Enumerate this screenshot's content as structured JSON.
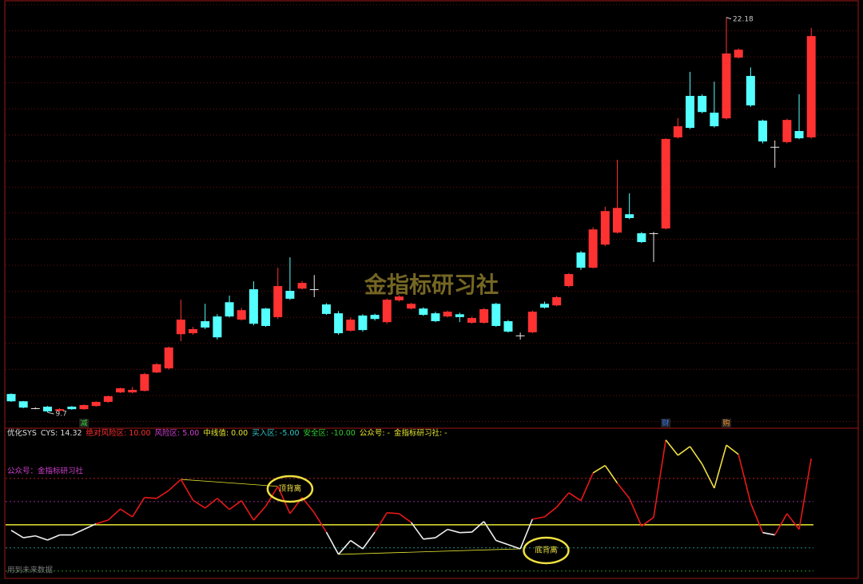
{
  "chart_data": [
    {
      "type": "candlestick",
      "up_color": "#ff3232",
      "down_color": "#54ffff",
      "ylim": [
        9.35,
        22.73
      ],
      "open": [
        10.28,
        10.05,
        9.83,
        9.88,
        9.75,
        9.88,
        9.8,
        9.9,
        10.03,
        10.33,
        10.33,
        10.38,
        10.96,
        11.09,
        12.17,
        12.2,
        12.58,
        12.73,
        13.18,
        12.63,
        13.59,
        12.98,
        12.71,
        13.54,
        13.61,
        13.59,
        13.11,
        12.83,
        12.28,
        12.76,
        12.78,
        12.55,
        13.24,
        12.98,
        12.98,
        12.83,
        12.73,
        12.8,
        12.53,
        12.53,
        13.13,
        12.58,
        12.13,
        12.23,
        13.13,
        13.08,
        13.69,
        14.75,
        14.27,
        15.0,
        15.38,
        15.96,
        15.36,
        15.36,
        15.51,
        18.39,
        19.7,
        19.7,
        19.17,
        18.99,
        20.91,
        20.33,
        18.92,
        18.09,
        18.24,
        18.59,
        18.39
      ],
      "close": [
        10.05,
        9.85,
        9.82,
        9.73,
        9.8,
        9.8,
        9.93,
        10.03,
        10.21,
        10.46,
        10.41,
        10.91,
        11.22,
        11.75,
        12.63,
        12.33,
        12.38,
        12.07,
        12.73,
        12.93,
        12.5,
        12.43,
        13.69,
        13.29,
        13.79,
        13.57,
        12.81,
        12.2,
        12.63,
        12.3,
        12.65,
        13.26,
        13.36,
        13.13,
        12.78,
        12.58,
        12.88,
        12.71,
        12.68,
        12.96,
        12.43,
        12.25,
        12.12,
        12.88,
        13.01,
        13.34,
        14.07,
        14.27,
        15.48,
        16.06,
        16.16,
        15.84,
        15.08,
        15.35,
        18.34,
        18.74,
        18.69,
        19.19,
        18.74,
        21.04,
        21.16,
        19.4,
        18.26,
        18.08,
        18.94,
        18.36,
        21.59
      ],
      "high": [
        10.3,
        10.06,
        9.86,
        9.9,
        9.83,
        9.9,
        9.95,
        10.05,
        10.23,
        10.48,
        10.5,
        10.95,
        11.26,
        11.78,
        13.26,
        12.4,
        13.13,
        12.8,
        13.39,
        13.0,
        13.84,
        13.0,
        14.27,
        14.6,
        13.85,
        14.04,
        13.15,
        12.9,
        12.7,
        12.8,
        12.82,
        13.3,
        13.4,
        13.16,
        13.02,
        12.88,
        12.92,
        12.85,
        12.72,
        13.0,
        13.16,
        12.62,
        12.22,
        12.92,
        13.2,
        13.38,
        14.1,
        14.8,
        15.55,
        16.2,
        17.68,
        16.62,
        15.4,
        15.4,
        18.36,
        19.0,
        20.46,
        19.75,
        20.15,
        22.18,
        21.2,
        20.6,
        18.95,
        18.29,
        18.98,
        19.75,
        21.85
      ],
      "low": [
        10.03,
        9.83,
        9.8,
        9.7,
        9.72,
        9.78,
        9.78,
        9.88,
        10.0,
        10.31,
        10.3,
        10.36,
        10.94,
        11.05,
        11.95,
        12.15,
        12.33,
        12.0,
        12.7,
        12.6,
        12.45,
        12.4,
        12.65,
        13.25,
        13.58,
        13.34,
        12.78,
        12.15,
        12.25,
        12.25,
        12.6,
        12.5,
        13.2,
        12.95,
        12.75,
        12.55,
        12.7,
        12.55,
        12.5,
        12.5,
        12.4,
        12.22,
        12.0,
        12.2,
        12.98,
        13.05,
        13.65,
        14.2,
        14.25,
        14.95,
        15.35,
        15.8,
        15.05,
        14.45,
        15.48,
        18.35,
        18.65,
        19.15,
        18.7,
        18.95,
        20.88,
        19.35,
        18.2,
        17.43,
        18.2,
        18.33,
        18.35
      ],
      "events": [
        {
          "label": "减",
          "color": "#33cc33"
        },
        {
          "label": "财",
          "color": "#3a7cff"
        },
        {
          "label": "购",
          "color": "#ff9a2e"
        }
      ],
      "watermark": "金指标研习社"
    },
    {
      "type": "line",
      "title": "优化SYS",
      "ylim": [
        -10.9,
        19.3
      ],
      "series": [
        {
          "name": "CYS:",
          "values": [
            -1.2,
            -2.8,
            -2.4,
            -3.3,
            -2.2,
            -2.2,
            -1.0,
            0.2,
            1.0,
            3.4,
            1.7,
            5.9,
            5.7,
            7.4,
            9.8,
            5.3,
            3.6,
            5.7,
            3.3,
            5.2,
            1.0,
            4.0,
            8.3,
            2.4,
            5.9,
            2.6,
            -1.6,
            -6.4,
            -3.4,
            -5.2,
            -1.6,
            2.6,
            2.4,
            0.5,
            -3.1,
            -2.8,
            -1.0,
            -1.7,
            -1.6,
            0.7,
            -3.4,
            -4.3,
            -5.2,
            1.2,
            1.7,
            3.8,
            6.9,
            5.2,
            11.2,
            12.8,
            9.0,
            5.7,
            -0.3,
            1.6,
            18.3,
            15.0,
            16.9,
            13.1,
            7.9,
            17.2,
            15.2,
            4.7,
            -1.7,
            -2.2,
            2.4,
            -1.0,
            14.32
          ]
        }
      ],
      "levels": [
        {
          "name": "绝对风险区:",
          "value": 10,
          "label": "10.00",
          "color": "#ff3030"
        },
        {
          "name": "风险区:",
          "value": 5,
          "label": "5.00",
          "color": "#d040d0"
        },
        {
          "name": "中线值:",
          "value": 0,
          "label": "0.00",
          "color": "#e8e830"
        },
        {
          "name": "买入区:",
          "value": -5,
          "label": "-5.00",
          "color": "#30c8c8"
        },
        {
          "name": "安全区:",
          "value": -10,
          "label": "-10.00",
          "color": "#30d030"
        }
      ],
      "extra_fields": [
        "公众号: -",
        "金指标研习社: -"
      ],
      "notes": [
        "公众号：金指标研习社",
        "用到未来数据"
      ],
      "annotations": [
        "顶背离",
        "底背离"
      ]
    }
  ]
}
